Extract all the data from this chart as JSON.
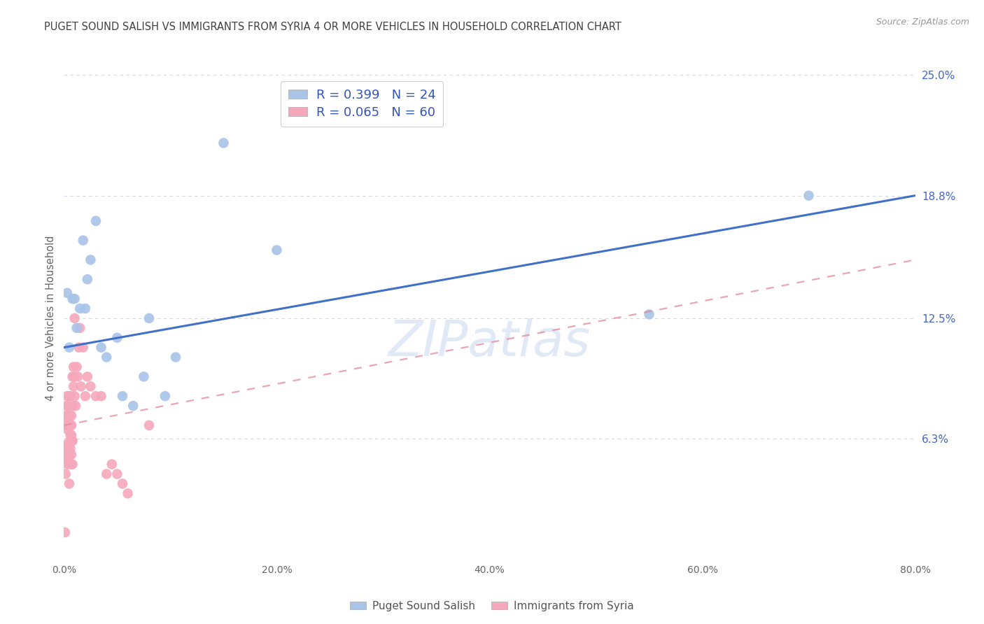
{
  "title": "PUGET SOUND SALISH VS IMMIGRANTS FROM SYRIA 4 OR MORE VEHICLES IN HOUSEHOLD CORRELATION CHART",
  "source": "Source: ZipAtlas.com",
  "ylabel": "4 or more Vehicles in Household",
  "xlim": [
    0.0,
    80.0
  ],
  "ylim": [
    0.0,
    25.0
  ],
  "legend_blue_R": "0.399",
  "legend_blue_N": "24",
  "legend_pink_R": "0.065",
  "legend_pink_N": "60",
  "legend_blue_label": "Puget Sound Salish",
  "legend_pink_label": "Immigrants from Syria",
  "blue_color": "#a8c4e8",
  "pink_color": "#f5a8bb",
  "blue_line_color": "#4070c8",
  "pink_line_color": "#e08898",
  "title_color": "#404040",
  "axis_label_color": "#666666",
  "right_tick_color": "#4466cc",
  "background_color": "#ffffff",
  "grid_color": "#ccd8ea",
  "blue_line_x0": 0,
  "blue_line_y0": 11.0,
  "blue_line_x1": 80,
  "blue_line_y1": 18.8,
  "pink_line_x0": 0,
  "pink_line_y0": 7.0,
  "pink_line_x1": 80,
  "pink_line_y1": 15.5,
  "blue_scatter_x": [
    0.3,
    0.5,
    0.8,
    1.0,
    1.2,
    1.5,
    1.8,
    2.0,
    2.2,
    2.5,
    3.0,
    3.5,
    4.0,
    5.0,
    5.5,
    6.5,
    7.5,
    8.0,
    9.5,
    10.5,
    15.0,
    20.0,
    55.0,
    70.0
  ],
  "blue_scatter_y": [
    13.8,
    11.0,
    13.5,
    13.5,
    12.0,
    13.0,
    16.5,
    13.0,
    14.5,
    15.5,
    17.5,
    11.0,
    10.5,
    11.5,
    8.5,
    8.0,
    9.5,
    12.5,
    8.5,
    10.5,
    21.5,
    16.0,
    12.7,
    18.8
  ],
  "pink_scatter_x": [
    0.1,
    0.15,
    0.2,
    0.2,
    0.2,
    0.25,
    0.3,
    0.3,
    0.3,
    0.3,
    0.35,
    0.4,
    0.4,
    0.4,
    0.4,
    0.4,
    0.45,
    0.5,
    0.5,
    0.5,
    0.5,
    0.5,
    0.55,
    0.6,
    0.6,
    0.6,
    0.6,
    0.65,
    0.7,
    0.7,
    0.7,
    0.7,
    0.75,
    0.8,
    0.8,
    0.8,
    0.85,
    0.9,
    0.9,
    0.95,
    1.0,
    1.0,
    1.1,
    1.2,
    1.3,
    1.4,
    1.5,
    1.6,
    1.8,
    2.0,
    2.2,
    2.5,
    3.0,
    3.5,
    4.0,
    4.5,
    5.0,
    5.5,
    6.0,
    8.0
  ],
  "pink_scatter_y": [
    1.5,
    4.5,
    5.5,
    6.0,
    8.0,
    7.5,
    6.8,
    7.0,
    5.0,
    8.5,
    7.5,
    5.2,
    5.8,
    6.0,
    7.2,
    8.0,
    5.5,
    4.0,
    5.0,
    5.5,
    7.5,
    8.5,
    6.2,
    5.8,
    6.5,
    7.0,
    8.5,
    5.0,
    5.5,
    6.5,
    7.0,
    7.5,
    6.2,
    5.0,
    6.2,
    9.5,
    8.0,
    9.0,
    10.0,
    9.5,
    8.5,
    12.5,
    8.0,
    10.0,
    9.5,
    11.0,
    12.0,
    9.0,
    11.0,
    8.5,
    9.5,
    9.0,
    8.5,
    8.5,
    4.5,
    5.0,
    4.5,
    4.0,
    3.5,
    7.0
  ],
  "y_right_labels": [
    "",
    "6.3%",
    "12.5%",
    "18.8%",
    "25.0%"
  ],
  "y_right_values": [
    0,
    6.3,
    12.5,
    18.8,
    25.0
  ],
  "x_tick_labels": [
    "0.0%",
    "20.0%",
    "40.0%",
    "60.0%",
    "80.0%"
  ],
  "x_tick_values": [
    0,
    20,
    40,
    60,
    80
  ]
}
